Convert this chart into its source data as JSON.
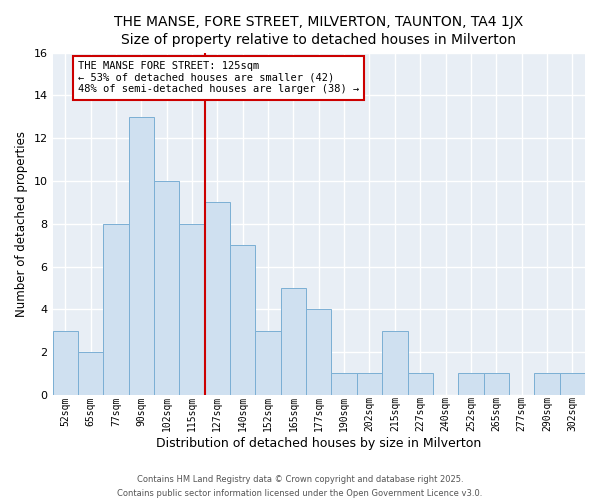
{
  "title": "THE MANSE, FORE STREET, MILVERTON, TAUNTON, TA4 1JX",
  "subtitle": "Size of property relative to detached houses in Milverton",
  "xlabel": "Distribution of detached houses by size in Milverton",
  "ylabel": "Number of detached properties",
  "bin_labels": [
    "52sqm",
    "65sqm",
    "77sqm",
    "90sqm",
    "102sqm",
    "115sqm",
    "127sqm",
    "140sqm",
    "152sqm",
    "165sqm",
    "177sqm",
    "190sqm",
    "202sqm",
    "215sqm",
    "227sqm",
    "240sqm",
    "252sqm",
    "265sqm",
    "277sqm",
    "290sqm",
    "302sqm"
  ],
  "bar_values": [
    3,
    2,
    8,
    13,
    10,
    8,
    9,
    7,
    3,
    5,
    4,
    1,
    1,
    3,
    1,
    0,
    1,
    1,
    0,
    1,
    1
  ],
  "bar_color": "#cfe0f0",
  "bar_edge_color": "#7bafd4",
  "reference_line_index": 6,
  "ylim": [
    0,
    16
  ],
  "yticks": [
    0,
    2,
    4,
    6,
    8,
    10,
    12,
    14,
    16
  ],
  "annotation_title": "THE MANSE FORE STREET: 125sqm",
  "annotation_line1": "← 53% of detached houses are smaller (42)",
  "annotation_line2": "48% of semi-detached houses are larger (38) →",
  "annotation_box_color": "#ffffff",
  "annotation_box_edge": "#cc0000",
  "footer_line1": "Contains HM Land Registry data © Crown copyright and database right 2025.",
  "footer_line2": "Contains public sector information licensed under the Open Government Licence v3.0.",
  "plot_bg_color": "#e8eef5",
  "fig_bg_color": "#ffffff",
  "grid_color": "#ffffff",
  "title_color": "#000000",
  "footer_color": "#555555"
}
